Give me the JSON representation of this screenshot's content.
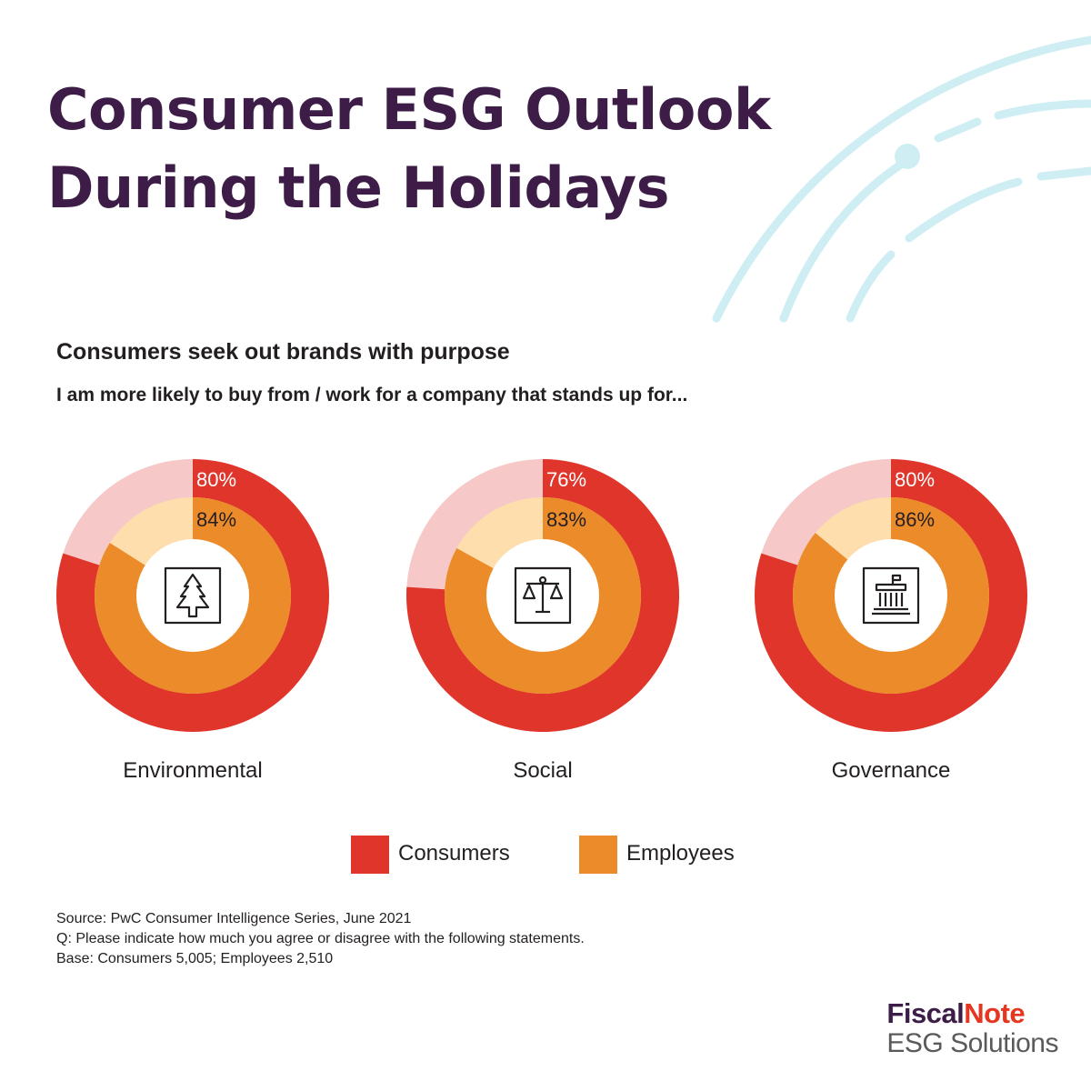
{
  "header": {
    "title_line1": "Consumer ESG Outlook",
    "title_line2": "During the Holidays"
  },
  "subtitle": "Consumers seek out brands with purpose",
  "question": "I am more likely to buy from / work for a company that stands up for...",
  "colors": {
    "title": "#3d1d47",
    "consumers": "#e0352b",
    "consumers_remainder": "#f6c8c8",
    "employees": "#ec8b2a",
    "employees_remainder": "#fddeac",
    "decoration": "#cfeef3"
  },
  "chart_data": [
    {
      "type": "pie",
      "category": "Environmental",
      "icon": "tree-icon",
      "series": [
        {
          "name": "Consumers",
          "value": 80,
          "label": "80%"
        },
        {
          "name": "Employees",
          "value": 84,
          "label": "84%"
        }
      ]
    },
    {
      "type": "pie",
      "category": "Social",
      "icon": "scales-icon",
      "series": [
        {
          "name": "Consumers",
          "value": 76,
          "label": "76%"
        },
        {
          "name": "Employees",
          "value": 83,
          "label": "83%"
        }
      ]
    },
    {
      "type": "pie",
      "category": "Governance",
      "icon": "capitol-building-icon",
      "series": [
        {
          "name": "Consumers",
          "value": 80,
          "label": "80%"
        },
        {
          "name": "Employees",
          "value": 86,
          "label": "86%"
        }
      ]
    }
  ],
  "legend": {
    "items": [
      {
        "label": "Consumers"
      },
      {
        "label": "Employees"
      }
    ]
  },
  "source": {
    "line1": "Source: PwC Consumer Intelligence Series, June 2021",
    "line2": "Q: Please indicate how much you agree or disagree with the following statements.",
    "line3": "Base: Consumers 5,005; Employees 2,510"
  },
  "brand": {
    "name_part1": "Fiscal",
    "name_part2": "Note",
    "tagline": "ESG Solutions"
  }
}
